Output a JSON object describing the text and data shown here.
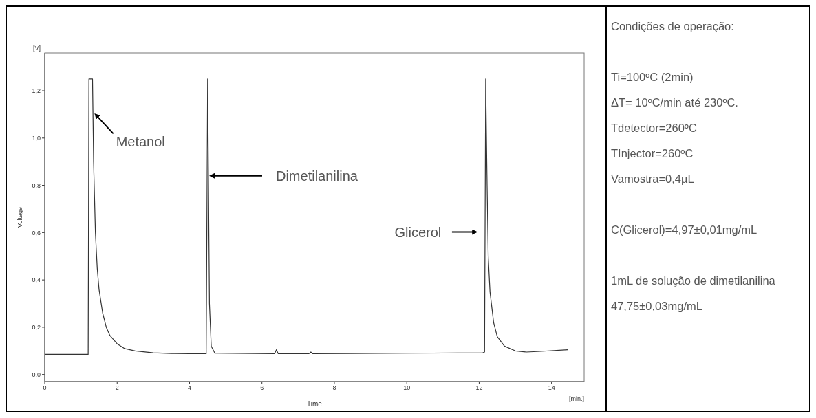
{
  "chart_data": [
    {
      "type": "line",
      "xlabel": "Time",
      "ylabel": "Voltage",
      "x": [
        0,
        1.2,
        1.22,
        1.32,
        1.35,
        1.4,
        1.45,
        1.5,
        1.6,
        1.7,
        1.8,
        2.0,
        2.2,
        2.5,
        3.0,
        3.5,
        4.0,
        4.46,
        4.5,
        4.55,
        4.6,
        4.7,
        6.35,
        6.4,
        6.45,
        7.3,
        7.35,
        7.4,
        10,
        12.1,
        12.15,
        12.18,
        12.22,
        12.25,
        12.3,
        12.4,
        12.5,
        12.7,
        13.0,
        13.3,
        13.7,
        14.45
      ],
      "series": [
        {
          "color": "#333333",
          "values": [
            0.085,
            0.085,
            1.25,
            1.25,
            0.9,
            0.6,
            0.45,
            0.36,
            0.26,
            0.2,
            0.165,
            0.13,
            0.11,
            0.1,
            0.092,
            0.089,
            0.088,
            0.088,
            1.25,
            0.3,
            0.12,
            0.09,
            0.088,
            0.105,
            0.088,
            0.088,
            0.095,
            0.088,
            0.09,
            0.092,
            0.095,
            1.25,
            0.8,
            0.5,
            0.35,
            0.22,
            0.16,
            0.12,
            0.1,
            0.095,
            0.098,
            0.105
          ]
        }
      ],
      "xlim": [
        0,
        14.9
      ],
      "xticks": [
        0,
        2,
        4,
        6,
        8,
        10,
        12,
        14
      ],
      "ylim": [
        -0.03,
        1.36
      ],
      "yticks": [
        {
          "value": 0,
          "label": "0,0"
        },
        {
          "value": 0.2,
          "label": "0,2"
        },
        {
          "value": 0.4,
          "label": "0,4"
        },
        {
          "value": 0.6,
          "label": "0,6"
        },
        {
          "value": 0.8,
          "label": "0,8"
        },
        {
          "value": 1.0,
          "label": "1,0"
        },
        {
          "value": 1.2,
          "label": "1,2"
        }
      ],
      "marker": "none",
      "annotations": [
        "[V]",
        "[min.]",
        {
          "text": "Metanol",
          "x": 1.4,
          "y": 1.1
        },
        {
          "text": "Dimetilanilina",
          "x": 4.58,
          "y": 0.84
        },
        "Glicerol"
      ]
    },
    {
      "type": "other",
      "title": "Condições de operação:",
      "annotations": [
        "Ti=100ºC (2min)",
        "ΔT= 10ºC/min até 230ºC.",
        "Tdetector=260ºC",
        "TInjector=260ºC",
        "Vamostra=0,4µL",
        "C(Glicerol)=4,97±0,01mg/mL",
        "1mL de solução de dimetilanilina",
        "47,75±0,03mg/mL"
      ]
    }
  ]
}
